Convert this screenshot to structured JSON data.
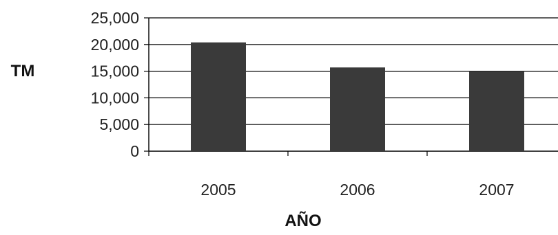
{
  "chart_data": {
    "type": "bar",
    "categories": [
      "2005",
      "2006",
      "2007"
    ],
    "values": [
      20400,
      15700,
      14900
    ],
    "title": "",
    "xlabel": "AÑO",
    "ylabel": "TM",
    "ylim": [
      0,
      25000
    ],
    "yticks": [
      "0",
      "5,000",
      "10,000",
      "15,000",
      "20,000",
      "25,000"
    ],
    "grid": true,
    "legend": "none",
    "colors": {
      "bar": "#3a3a3a",
      "grid": "#000000",
      "text": "#222222"
    }
  }
}
